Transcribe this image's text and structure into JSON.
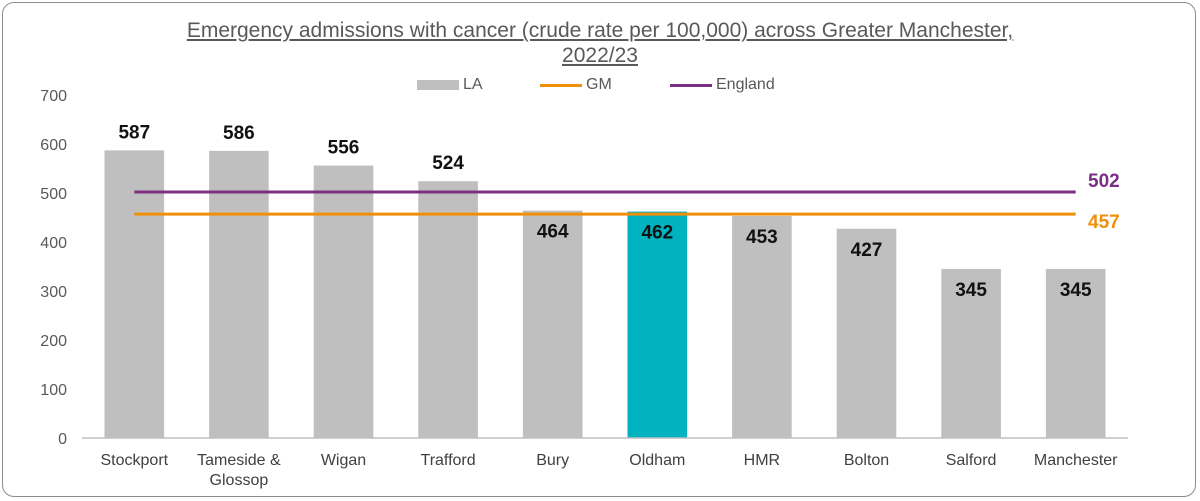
{
  "chart_data": {
    "type": "bar",
    "title_line1": "Emergency admissions with cancer (crude rate per 100,000) across Greater Manchester,",
    "title_line2": "2022/23",
    "categories": [
      "Stockport",
      "Tameside & Glossop",
      "Wigan",
      "Trafford",
      "Bury",
      "Oldham",
      "HMR",
      "Bolton",
      "Salford",
      "Manchester"
    ],
    "category_lines": [
      [
        "Stockport"
      ],
      [
        "Tameside &",
        "Glossop"
      ],
      [
        "Wigan"
      ],
      [
        "Trafford"
      ],
      [
        "Bury"
      ],
      [
        "Oldham"
      ],
      [
        "HMR"
      ],
      [
        "Bolton"
      ],
      [
        "Salford"
      ],
      [
        "Manchester"
      ]
    ],
    "series": [
      {
        "name": "LA",
        "values": [
          587,
          586,
          556,
          524,
          464,
          462,
          453,
          427,
          345,
          345
        ]
      }
    ],
    "value_labels": [
      "587",
      "586",
      "556",
      "524",
      "464",
      "462",
      "453",
      "427",
      "345",
      "345"
    ],
    "highlight_category": "Oldham",
    "reference_lines": [
      {
        "name": "GM",
        "value": 457,
        "label": "457",
        "color": "#f0900a"
      },
      {
        "name": "England",
        "value": 502,
        "label": "502",
        "color": "#7b2f85"
      }
    ],
    "yticks": [
      "0",
      "100",
      "200",
      "300",
      "400",
      "500",
      "600",
      "700"
    ],
    "ylim": [
      0,
      700
    ],
    "legend_position": "top",
    "grid": false,
    "colors": {
      "bar": "#bfbfbf",
      "highlight": "#00b3bf",
      "axis": "#bfbfbf"
    }
  }
}
